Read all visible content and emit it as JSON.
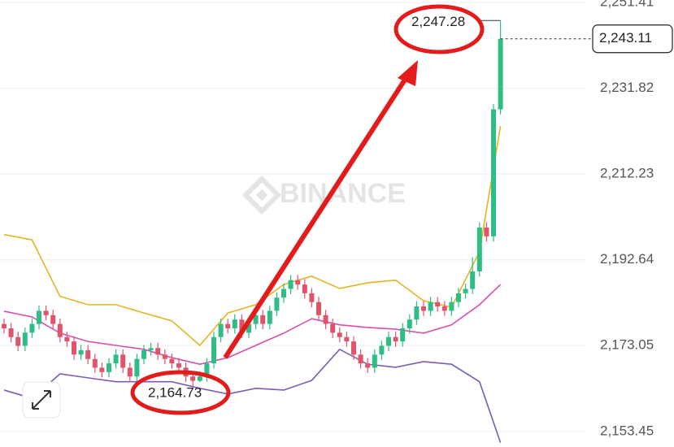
{
  "chart_data": {
    "type": "candlestick",
    "watermark": "BINANCE",
    "ylim": [
      2149.9,
      2251.97
    ],
    "yticks": [
      {
        "value": 2251.41,
        "label": "2,251.41"
      },
      {
        "value": 2231.82,
        "label": "2,231.82"
      },
      {
        "value": 2212.23,
        "label": "2,212.23"
      },
      {
        "value": 2192.64,
        "label": "2,192.64"
      },
      {
        "value": 2173.05,
        "label": "2,173.05"
      },
      {
        "value": 2153.45,
        "label": "2,153.45"
      }
    ],
    "grid": true,
    "up_color": "#2ebd85",
    "down_color": "#e0546b",
    "open": [
      2178,
      2177,
      2175,
      2173,
      2176,
      2178,
      2181,
      2180,
      2178,
      2175,
      2174,
      2171,
      2172,
      2170,
      2168,
      2167,
      2169,
      2171,
      2168,
      2166,
      2170,
      2172,
      2172.5,
      2171,
      2170,
      2169,
      2168,
      2166,
      2165,
      2166,
      2169,
      2175,
      2178,
      2177,
      2179,
      2176,
      2178,
      2180,
      2178,
      2181,
      2184,
      2186,
      2188,
      2187,
      2185,
      2183,
      2180,
      2178,
      2176,
      2175,
      2174,
      2171,
      2169,
      2168,
      2171,
      2173,
      2175,
      2174,
      2177,
      2179,
      2182,
      2181,
      2183,
      2182,
      2181,
      2183,
      2185,
      2186,
      2190,
      2200,
      2198,
      2227
    ],
    "high": [
      2179.2,
      2178.2,
      2176.2,
      2177.2,
      2179.2,
      2182.2,
      2182.2,
      2181.2,
      2179.2,
      2176.2,
      2175.2,
      2173.2,
      2173.2,
      2171.2,
      2169.2,
      2170.2,
      2172.2,
      2172.2,
      2169.2,
      2171.2,
      2173.2,
      2173.7,
      2173.7,
      2172.2,
      2171.2,
      2170.2,
      2169.2,
      2167.2,
      2167.2,
      2170.2,
      2176.2,
      2179.2,
      2179.2,
      2180.2,
      2180.2,
      2179.2,
      2181.2,
      2181.2,
      2182.2,
      2185.2,
      2187.2,
      2189.2,
      2189.2,
      2188.2,
      2186.2,
      2184.2,
      2181.2,
      2179.2,
      2177.2,
      2176.2,
      2175.2,
      2172.2,
      2170.2,
      2172.2,
      2174.2,
      2176.2,
      2176.2,
      2178.2,
      2180.2,
      2183.2,
      2183.2,
      2184.2,
      2184.2,
      2183.2,
      2184.2,
      2186.2,
      2187.2,
      2193.2,
      2201.2,
      2201.2,
      2228.2,
      2247.28
    ],
    "low": [
      2175.8,
      2173.8,
      2171.8,
      2171.8,
      2174.8,
      2176.8,
      2178.8,
      2176.8,
      2173.8,
      2172.8,
      2169.8,
      2169.8,
      2168.8,
      2166.8,
      2165.8,
      2165.8,
      2167.8,
      2166.8,
      2164.8,
      2164.8,
      2168.8,
      2170.8,
      2169.8,
      2168.8,
      2167.8,
      2166.8,
      2164.8,
      2163.8,
      2164.73,
      2164.8,
      2167.8,
      2173.8,
      2175.8,
      2175.8,
      2174.8,
      2174.8,
      2176.8,
      2176.8,
      2176.8,
      2179.8,
      2182.8,
      2184.8,
      2185.8,
      2183.8,
      2181.8,
      2178.8,
      2176.8,
      2174.8,
      2173.8,
      2172.8,
      2169.8,
      2167.8,
      2166.8,
      2166.8,
      2169.8,
      2171.8,
      2172.8,
      2172.8,
      2175.8,
      2177.8,
      2179.8,
      2179.8,
      2180.8,
      2179.8,
      2179.8,
      2181.8,
      2183.8,
      2184.8,
      2188.8,
      2196.8,
      2196.8,
      2225.8
    ],
    "close": [
      2177,
      2175,
      2173,
      2176,
      2178,
      2181,
      2180,
      2178,
      2175,
      2174,
      2171,
      2172,
      2170,
      2168,
      2167,
      2169,
      2171,
      2168,
      2166,
      2170,
      2172,
      2172.5,
      2171,
      2170,
      2169,
      2168,
      2166,
      2165,
      2166,
      2169,
      2175,
      2178,
      2177,
      2179,
      2176,
      2178,
      2180,
      2178,
      2181,
      2184,
      2186,
      2188,
      2187,
      2185,
      2183,
      2180,
      2178,
      2176,
      2175,
      2174,
      2171,
      2169,
      2168,
      2171,
      2173,
      2175,
      2174,
      2177,
      2179,
      2182,
      2181,
      2183,
      2182,
      2181,
      2183,
      2185,
      2186,
      2190,
      2200,
      2198,
      2227,
      2243.11
    ],
    "bands": [
      {
        "color": "#e6b422",
        "x": [
          0,
          4,
          8,
          12,
          16,
          20,
          24,
          28,
          32,
          36,
          40,
          44,
          48,
          52,
          56,
          60,
          64,
          68,
          71
        ],
        "values": [
          2198.4,
          2197.2,
          2184.3,
          2182.4,
          2182.4,
          2180.5,
          2178.7,
          2173.1,
          2180.5,
          2182.4,
          2187,
          2188.9,
          2186.1,
          2187.4,
          2188,
          2183.3,
          2181.8,
          2194.5,
          2223.2
        ]
      },
      {
        "color": "#d94faa",
        "x": [
          0,
          4,
          8,
          12,
          16,
          20,
          24,
          28,
          32,
          36,
          40,
          44,
          48,
          52,
          56,
          60,
          64,
          68,
          71
        ],
        "values": [
          2180.9,
          2179.6,
          2175.9,
          2174,
          2173.1,
          2172.2,
          2170.3,
          2168.8,
          2170.3,
          2173.1,
          2175.9,
          2179.2,
          2177.8,
          2177.2,
          2176.8,
          2175.9,
          2177.8,
          2182.4,
          2187
        ]
      },
      {
        "color": "#7b5cb5",
        "x": [
          0,
          4,
          8,
          12,
          16,
          20,
          24,
          28,
          32,
          36,
          40,
          44,
          48,
          52,
          56,
          60,
          64,
          68,
          71
        ],
        "values": [
          2162.9,
          2161,
          2166.6,
          2165.7,
          2164.8,
          2164.8,
          2164.8,
          2163.3,
          2162,
          2163.3,
          2162.9,
          2165.1,
          2172.2,
          2168.8,
          2168.1,
          2169.4,
          2168.8,
          2164.8,
          2150.9
        ]
      }
    ],
    "annotations": [
      {
        "text": "2,247.28"
      },
      {
        "text": "2,164.73"
      }
    ],
    "last_price_label": "2,243.11"
  }
}
